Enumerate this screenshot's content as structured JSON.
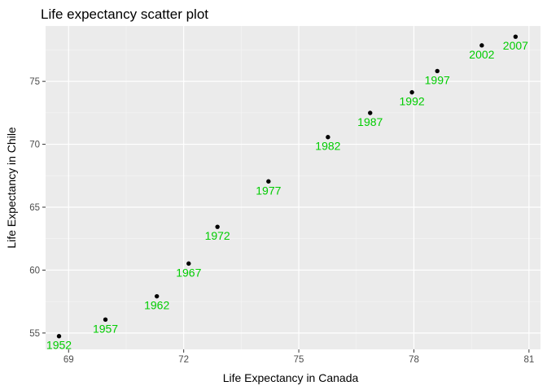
{
  "chart_data": {
    "type": "scatter",
    "title": "Life expectancy scatter plot",
    "xlabel": "Life Expectancy in Canada",
    "ylabel": "Life Expectancy in Chile",
    "xlim": [
      68.4,
      81.3
    ],
    "ylim": [
      53.7,
      79.4
    ],
    "xticks": [
      69,
      72,
      75,
      78,
      81
    ],
    "yticks": [
      55,
      60,
      65,
      70,
      75
    ],
    "grid": true,
    "legend": "none",
    "point_color": "#000000",
    "label_color": "#00cc00",
    "panel_color": "#ebebeb",
    "points": [
      {
        "x": 68.75,
        "y": 54.75,
        "label": "1952"
      },
      {
        "x": 69.96,
        "y": 56.07,
        "label": "1957"
      },
      {
        "x": 71.3,
        "y": 57.92,
        "label": "1962"
      },
      {
        "x": 72.13,
        "y": 60.52,
        "label": "1967"
      },
      {
        "x": 72.88,
        "y": 63.44,
        "label": "1972"
      },
      {
        "x": 74.21,
        "y": 67.05,
        "label": "1977"
      },
      {
        "x": 75.76,
        "y": 70.57,
        "label": "1982"
      },
      {
        "x": 76.86,
        "y": 72.49,
        "label": "1987"
      },
      {
        "x": 77.95,
        "y": 74.13,
        "label": "1992"
      },
      {
        "x": 78.61,
        "y": 75.82,
        "label": "1997"
      },
      {
        "x": 79.77,
        "y": 77.86,
        "label": "2002"
      },
      {
        "x": 80.65,
        "y": 78.55,
        "label": "2007"
      }
    ]
  }
}
